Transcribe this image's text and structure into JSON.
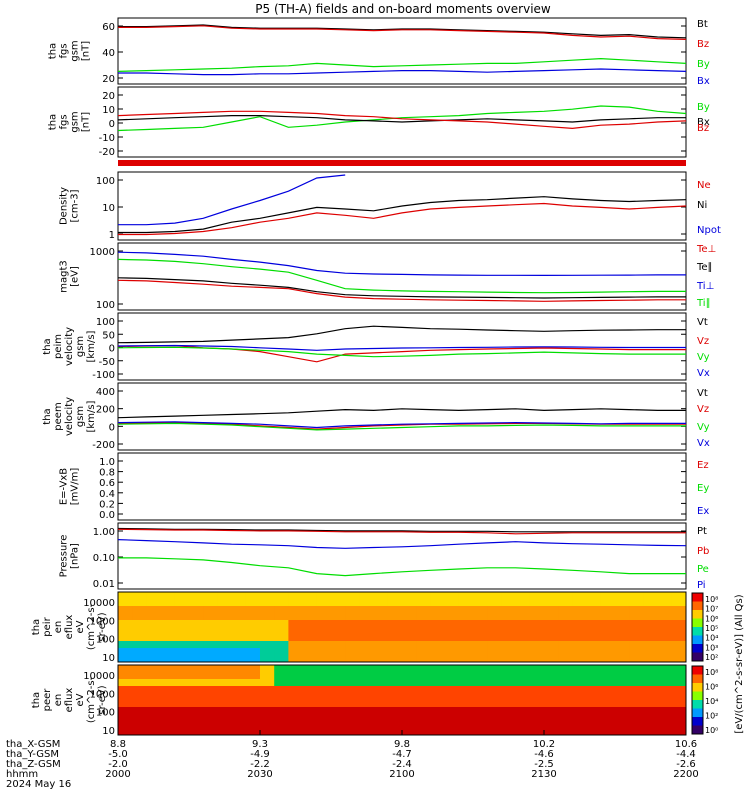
{
  "title": "P5 (TH-A) fields and on-board moments overview",
  "colors": {
    "black": "#000000",
    "red": "#dd0000",
    "green": "#00dd00",
    "blue": "#0000dd"
  },
  "chart_data": [
    {
      "type": "line",
      "panel": "fgs_mag",
      "ylabel": [
        "tha",
        "fgs",
        "gsm",
        "[nT]"
      ],
      "yticks": [
        "60",
        "40",
        "20"
      ],
      "ylim": [
        0,
        75
      ],
      "series": [
        {
          "name": "Bt",
          "color": "black",
          "values": [
            68,
            68,
            69,
            70,
            67,
            66,
            66,
            66,
            65,
            64,
            65,
            65,
            64,
            63,
            62,
            61,
            59,
            57,
            58,
            55,
            54
          ]
        },
        {
          "name": "Bz",
          "color": "red",
          "values": [
            67,
            67,
            68,
            69,
            66,
            65,
            65,
            65,
            64,
            63,
            64,
            64,
            63,
            62,
            61,
            60,
            57,
            55,
            56,
            53,
            52
          ]
        },
        {
          "name": "By",
          "color": "green",
          "values": [
            12,
            13,
            14,
            15,
            16,
            18,
            19,
            22,
            20,
            18,
            19,
            20,
            21,
            22,
            22,
            24,
            26,
            28,
            26,
            24,
            22
          ]
        },
        {
          "name": "Bx",
          "color": "blue",
          "values": [
            10,
            10,
            9,
            8,
            8,
            9,
            9,
            10,
            11,
            12,
            13,
            13,
            12,
            11,
            12,
            13,
            14,
            15,
            14,
            13,
            12
          ]
        }
      ]
    },
    {
      "type": "line",
      "panel": "fgs_components",
      "ylabel": [
        "tha",
        "fgs",
        "gsm",
        "[nT]"
      ],
      "yticks": [
        "20",
        "10",
        "0",
        "-10",
        "-20"
      ],
      "ylim": [
        -30,
        30
      ],
      "series": [
        {
          "name": "By",
          "color": "green",
          "values": [
            -8,
            -7,
            -6,
            -5,
            0,
            5,
            -5,
            -3,
            0,
            2,
            4,
            5,
            6,
            8,
            9,
            10,
            12,
            15,
            14,
            10,
            8
          ]
        },
        {
          "name": "Bx",
          "color": "black",
          "values": [
            2,
            3,
            4,
            5,
            6,
            6,
            5,
            4,
            2,
            1,
            0,
            1,
            2,
            3,
            2,
            1,
            0,
            2,
            3,
            4,
            4
          ]
        },
        {
          "name": "Bz",
          "color": "red",
          "values": [
            6,
            7,
            8,
            9,
            10,
            10,
            9,
            8,
            6,
            5,
            3,
            2,
            1,
            0,
            -2,
            -4,
            -6,
            -3,
            -2,
            0,
            1
          ]
        }
      ]
    },
    {
      "type": "line",
      "panel": "density",
      "ylabel": [
        "Density",
        "[cm-3]"
      ],
      "yticks": [
        "100",
        "10",
        "1"
      ],
      "yscale": "log",
      "ylim": [
        1,
        100
      ],
      "series": [
        {
          "name": "Ne",
          "color": "red",
          "values": [
            1.2,
            1.2,
            1.3,
            1.5,
            2,
            3,
            4,
            6,
            5,
            4,
            6,
            8,
            9,
            10,
            11,
            12,
            10,
            9,
            8,
            9,
            10
          ]
        },
        {
          "name": "Ni",
          "color": "black",
          "values": [
            1.4,
            1.4,
            1.5,
            1.8,
            3,
            4,
            6,
            9,
            8,
            7,
            10,
            13,
            15,
            16,
            18,
            20,
            17,
            15,
            14,
            15,
            16
          ]
        },
        {
          "name": "Npot",
          "color": "blue",
          "values": [
            2.5,
            2.5,
            2.8,
            4,
            8,
            15,
            30,
            80,
            100,
            null,
            null,
            null,
            null,
            null,
            null,
            null,
            null,
            null,
            null,
            null,
            null
          ]
        }
      ]
    },
    {
      "type": "line",
      "panel": "temperature",
      "ylabel": [
        "magt3",
        "[eV]"
      ],
      "yticks": [
        "1000",
        "100"
      ],
      "yscale": "log",
      "ylim": [
        20,
        3000
      ],
      "series": [
        {
          "name": "Te⊥",
          "color": "red",
          "values": [
            180,
            170,
            150,
            130,
            110,
            100,
            90,
            60,
            45,
            40,
            38,
            36,
            35,
            34,
            33,
            32,
            33,
            34,
            35,
            36,
            36
          ]
        },
        {
          "name": "Te∥",
          "color": "black",
          "values": [
            220,
            210,
            190,
            170,
            140,
            120,
            100,
            70,
            55,
            50,
            48,
            46,
            45,
            44,
            43,
            42,
            43,
            44,
            45,
            46,
            46
          ]
        },
        {
          "name": "Ti⊥",
          "color": "blue",
          "values": [
            1800,
            1700,
            1500,
            1300,
            1000,
            800,
            600,
            400,
            320,
            300,
            290,
            280,
            275,
            270,
            270,
            268,
            270,
            272,
            275,
            280,
            280
          ]
        },
        {
          "name": "Ti∥",
          "color": "green",
          "values": [
            1000,
            950,
            850,
            700,
            550,
            450,
            350,
            180,
            90,
            80,
            75,
            72,
            70,
            68,
            66,
            65,
            66,
            68,
            70,
            72,
            72
          ]
        }
      ]
    },
    {
      "type": "line",
      "panel": "ion_velocity",
      "ylabel": [
        "tha",
        "peim",
        "velocity",
        "gsm",
        "[km/s]"
      ],
      "yticks": [
        "100",
        "50",
        "0",
        "-50",
        "-100"
      ],
      "ylim": [
        -120,
        120
      ],
      "series": [
        {
          "name": "Vt",
          "color": "black",
          "values": [
            15,
            16,
            18,
            20,
            25,
            30,
            35,
            50,
            70,
            80,
            75,
            70,
            68,
            65,
            62,
            60,
            62,
            64,
            65,
            66,
            66
          ]
        },
        {
          "name": "Vz",
          "color": "red",
          "values": [
            0,
            2,
            3,
            -5,
            -10,
            -20,
            -40,
            -60,
            -30,
            -25,
            -20,
            -15,
            -12,
            -10,
            -8,
            -6,
            -8,
            -10,
            -12,
            -12,
            -12
          ]
        },
        {
          "name": "Vy",
          "color": "green",
          "values": [
            -5,
            -4,
            -3,
            -6,
            -10,
            -15,
            -20,
            -30,
            -35,
            -40,
            -38,
            -35,
            -30,
            -28,
            -25,
            -22,
            -25,
            -28,
            -30,
            -30,
            -30
          ]
        },
        {
          "name": "Vx",
          "color": "blue",
          "values": [
            2,
            3,
            4,
            2,
            0,
            -5,
            -10,
            -15,
            -10,
            -8,
            -6,
            -5,
            -4,
            -3,
            -2,
            -1,
            -2,
            -3,
            -4,
            -4,
            -4
          ]
        }
      ]
    },
    {
      "type": "line",
      "panel": "electron_velocity",
      "ylabel": [
        "tha",
        "peem",
        "velocity",
        "gsm",
        "[km/s]"
      ],
      "yticks": [
        "400",
        "200",
        "0",
        "-200"
      ],
      "ylim": [
        -300,
        450
      ],
      "series": [
        {
          "name": "Vt",
          "color": "black",
          "values": [
            60,
            70,
            80,
            90,
            100,
            110,
            120,
            140,
            160,
            150,
            170,
            160,
            150,
            160,
            170,
            150,
            160,
            170,
            160,
            150,
            150
          ]
        },
        {
          "name": "Vz",
          "color": "red",
          "values": [
            -10,
            -5,
            0,
            -10,
            -20,
            -40,
            -60,
            -80,
            -60,
            -40,
            -30,
            -20,
            -20,
            -15,
            -10,
            -10,
            -15,
            -20,
            -20,
            -20,
            -20
          ]
        },
        {
          "name": "Vy",
          "color": "green",
          "values": [
            -20,
            -15,
            -10,
            -20,
            -30,
            -50,
            -70,
            -90,
            -80,
            -70,
            -60,
            -50,
            -40,
            -40,
            -35,
            -30,
            -35,
            -40,
            -40,
            -40,
            -40
          ]
        },
        {
          "name": "Vx",
          "color": "blue",
          "values": [
            0,
            5,
            10,
            0,
            -10,
            -20,
            -40,
            -60,
            -40,
            -30,
            -20,
            -15,
            -10,
            -5,
            0,
            -5,
            -10,
            -15,
            -10,
            -10,
            -10
          ]
        }
      ]
    },
    {
      "type": "line",
      "panel": "efield",
      "ylabel": [
        "E=-VxB",
        "[mV/m]"
      ],
      "yticks": [
        "1.0",
        "0.8",
        "0.6",
        "0.4",
        "0.2",
        "0.0"
      ],
      "ylim": [
        0,
        1
      ],
      "series": [
        {
          "name": "Ez",
          "color": "red",
          "values": []
        },
        {
          "name": "Ey",
          "color": "green",
          "values": []
        },
        {
          "name": "Ex",
          "color": "blue",
          "values": []
        }
      ]
    },
    {
      "type": "line",
      "panel": "pressure",
      "ylabel": [
        "Pressure",
        "[nPa]"
      ],
      "yticks": [
        "1.00",
        "0.10",
        "0.01"
      ],
      "yscale": "log",
      "ylim": [
        0.01,
        2
      ],
      "series": [
        {
          "name": "Pt",
          "color": "black",
          "values": [
            1.6,
            1.55,
            1.5,
            1.5,
            1.45,
            1.4,
            1.4,
            1.35,
            1.3,
            1.3,
            1.3,
            1.25,
            1.25,
            1.25,
            1.2,
            1.2,
            1.2,
            1.2,
            1.2,
            1.2,
            1.2
          ]
        },
        {
          "name": "Pb",
          "color": "red",
          "values": [
            1.5,
            1.45,
            1.4,
            1.4,
            1.35,
            1.3,
            1.3,
            1.25,
            1.2,
            1.2,
            1.2,
            1.15,
            1.15,
            1.1,
            1.0,
            1.05,
            1.1,
            1.1,
            1.1,
            1.1,
            1.1
          ]
        },
        {
          "name": "Pe",
          "color": "green",
          "values": [
            0.12,
            0.12,
            0.11,
            0.1,
            0.08,
            0.06,
            0.05,
            0.03,
            0.025,
            0.03,
            0.035,
            0.04,
            0.045,
            0.05,
            0.05,
            0.045,
            0.04,
            0.035,
            0.03,
            0.03,
            0.03
          ]
        },
        {
          "name": "Pi",
          "color": "blue",
          "values": [
            0.6,
            0.55,
            0.5,
            0.45,
            0.4,
            0.38,
            0.35,
            0.3,
            0.28,
            0.3,
            0.32,
            0.35,
            0.4,
            0.45,
            0.5,
            0.45,
            0.42,
            0.4,
            0.38,
            0.36,
            0.35
          ]
        }
      ]
    },
    {
      "type": "heatmap",
      "panel": "ion_spectrogram",
      "ylabel": [
        "tha",
        "peir",
        "en",
        "eflux",
        "eV",
        "(cm^2-s-",
        "sr-eV)"
      ],
      "yticks": [
        "10000",
        "1000",
        "100",
        "10"
      ],
      "yscale": "log"
    },
    {
      "type": "heatmap",
      "panel": "electron_spectrogram",
      "ylabel": [
        "tha",
        "peer",
        "en",
        "eflux",
        "eV",
        "(cm^2-s-",
        "sr-eV)"
      ],
      "yticks": [
        "10000",
        "1000",
        "100",
        "10"
      ],
      "yscale": "log"
    }
  ],
  "colorbar": {
    "upper_ticks": [
      "10⁸",
      "10⁷",
      "10⁶",
      "10⁵",
      "10⁴",
      "10³",
      "10²"
    ],
    "lower_ticks": [
      "10⁸",
      "10⁶",
      "10⁴",
      "10²",
      "10⁰"
    ],
    "label": "[eV/(cm^2-s-sr-eV)] (All Qs)"
  },
  "xaxis": {
    "labels": [
      "tha_X-GSM",
      "tha_Y-GSM",
      "tha_Z-GSM",
      "hhmm",
      "2024 May 16"
    ],
    "columns": [
      [
        "8.8",
        "-5.0",
        "-2.0",
        "2000"
      ],
      [
        "9.3",
        "-4.9",
        "-2.2",
        "2030"
      ],
      [
        "9.8",
        "-4.7",
        "-2.4",
        "2100"
      ],
      [
        "10.2",
        "-4.6",
        "-2.5",
        "2130"
      ],
      [
        "10.6",
        "-4.4",
        "-2.6",
        "2200"
      ]
    ]
  }
}
